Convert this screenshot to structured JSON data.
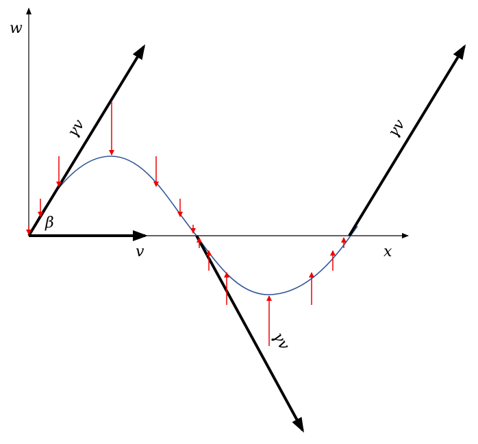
{
  "axes": {
    "y_label": "w",
    "x_label": "x"
  },
  "velocity_label": "v",
  "angle_label": "β",
  "vectors": [
    {
      "label": "γv"
    },
    {
      "label": "γv"
    },
    {
      "label": "γv"
    }
  ]
}
